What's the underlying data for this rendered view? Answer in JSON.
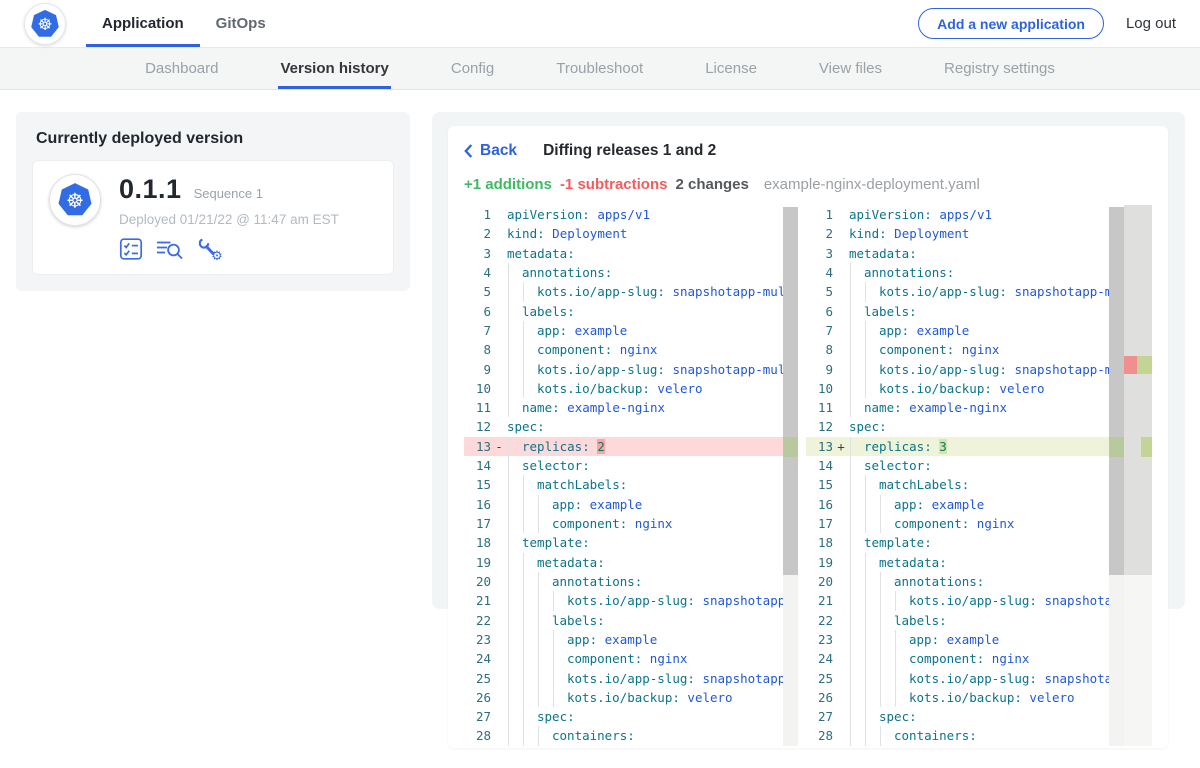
{
  "colors": {
    "accent": "#2f62df",
    "k8s_blue": "#326ce5",
    "additions_green": "#3fba64",
    "subtractions_red": "#f55b5b",
    "code_key": "#0c7489",
    "code_value": "#2158d8",
    "removed_row_bg": "#fdd9d9",
    "removed_char_bg": "#f7a5a5",
    "added_row_bg": "#eef3da",
    "added_char_bg": "#d6e5ab"
  },
  "header": {
    "tabs": [
      {
        "label": "Application",
        "active": true
      },
      {
        "label": "GitOps",
        "active": false
      }
    ],
    "add_app_button": "Add a new application",
    "logout": "Log out"
  },
  "subnav": {
    "items": [
      {
        "label": "Dashboard",
        "active": false
      },
      {
        "label": "Version history",
        "active": true
      },
      {
        "label": "Config",
        "active": false
      },
      {
        "label": "Troubleshoot",
        "active": false
      },
      {
        "label": "License",
        "active": false
      },
      {
        "label": "View files",
        "active": false
      },
      {
        "label": "Registry settings",
        "active": false
      }
    ]
  },
  "deployed_card": {
    "title": "Currently deployed version",
    "version": "0.1.1",
    "sequence": "Sequence 1",
    "deployed": "Deployed 01/21/22 @ 11:47 am EST",
    "action_icons": [
      "preflight-checks",
      "deploy-logs",
      "config"
    ]
  },
  "diff": {
    "back_label": "Back",
    "title": "Diffing releases 1 and 2",
    "additions": "+1 additions",
    "subtractions": "-1 subtractions",
    "changes": "2 changes",
    "filename": "example-nginx-deployment.yaml",
    "left": {
      "lines": [
        {
          "n": 1,
          "ind": 0,
          "k": "apiVersion:",
          "v": "apps/v1"
        },
        {
          "n": 2,
          "ind": 0,
          "k": "kind:",
          "v": "Deployment"
        },
        {
          "n": 3,
          "ind": 0,
          "k": "metadata:",
          "v": ""
        },
        {
          "n": 4,
          "ind": 1,
          "k": "annotations:",
          "v": ""
        },
        {
          "n": 5,
          "ind": 2,
          "k": "kots.io/app-slug:",
          "v": "snapshotapp-multi"
        },
        {
          "n": 6,
          "ind": 1,
          "k": "labels:",
          "v": ""
        },
        {
          "n": 7,
          "ind": 2,
          "k": "app:",
          "v": "example"
        },
        {
          "n": 8,
          "ind": 2,
          "k": "component:",
          "v": "nginx"
        },
        {
          "n": 9,
          "ind": 2,
          "k": "kots.io/app-slug:",
          "v": "snapshotapp-multi"
        },
        {
          "n": 10,
          "ind": 2,
          "k": "kots.io/backup:",
          "v": "velero"
        },
        {
          "n": 11,
          "ind": 1,
          "k": "name:",
          "v": "example-nginx"
        },
        {
          "n": 12,
          "ind": 0,
          "k": "spec:",
          "v": ""
        },
        {
          "n": 13,
          "ind": 1,
          "k": "replicas:",
          "v": "2",
          "mark": "-",
          "chg": "removed"
        },
        {
          "n": 14,
          "ind": 1,
          "k": "selector:",
          "v": ""
        },
        {
          "n": 15,
          "ind": 2,
          "k": "matchLabels:",
          "v": ""
        },
        {
          "n": 16,
          "ind": 3,
          "k": "app:",
          "v": "example"
        },
        {
          "n": 17,
          "ind": 3,
          "k": "component:",
          "v": "nginx"
        },
        {
          "n": 18,
          "ind": 1,
          "k": "template:",
          "v": ""
        },
        {
          "n": 19,
          "ind": 2,
          "k": "metadata:",
          "v": ""
        },
        {
          "n": 20,
          "ind": 3,
          "k": "annotations:",
          "v": ""
        },
        {
          "n": 21,
          "ind": 4,
          "k": "kots.io/app-slug:",
          "v": "snapshotapp-multi"
        },
        {
          "n": 22,
          "ind": 3,
          "k": "labels:",
          "v": ""
        },
        {
          "n": 23,
          "ind": 4,
          "k": "app:",
          "v": "example"
        },
        {
          "n": 24,
          "ind": 4,
          "k": "component:",
          "v": "nginx"
        },
        {
          "n": 25,
          "ind": 4,
          "k": "kots.io/app-slug:",
          "v": "snapshotapp-multi"
        },
        {
          "n": 26,
          "ind": 4,
          "k": "kots.io/backup:",
          "v": "velero"
        },
        {
          "n": 27,
          "ind": 2,
          "k": "spec:",
          "v": ""
        },
        {
          "n": 28,
          "ind": 3,
          "k": "containers:",
          "v": ""
        }
      ]
    },
    "right": {
      "lines": [
        {
          "n": 1,
          "ind": 0,
          "k": "apiVersion:",
          "v": "apps/v1"
        },
        {
          "n": 2,
          "ind": 0,
          "k": "kind:",
          "v": "Deployment"
        },
        {
          "n": 3,
          "ind": 0,
          "k": "metadata:",
          "v": ""
        },
        {
          "n": 4,
          "ind": 1,
          "k": "annotations:",
          "v": ""
        },
        {
          "n": 5,
          "ind": 2,
          "k": "kots.io/app-slug:",
          "v": "snapshotapp-multi"
        },
        {
          "n": 6,
          "ind": 1,
          "k": "labels:",
          "v": ""
        },
        {
          "n": 7,
          "ind": 2,
          "k": "app:",
          "v": "example"
        },
        {
          "n": 8,
          "ind": 2,
          "k": "component:",
          "v": "nginx"
        },
        {
          "n": 9,
          "ind": 2,
          "k": "kots.io/app-slug:",
          "v": "snapshotapp-multi"
        },
        {
          "n": 10,
          "ind": 2,
          "k": "kots.io/backup:",
          "v": "velero"
        },
        {
          "n": 11,
          "ind": 1,
          "k": "name:",
          "v": "example-nginx"
        },
        {
          "n": 12,
          "ind": 0,
          "k": "spec:",
          "v": ""
        },
        {
          "n": 13,
          "ind": 1,
          "k": "replicas:",
          "v": "3",
          "mark": "+",
          "chg": "added"
        },
        {
          "n": 14,
          "ind": 1,
          "k": "selector:",
          "v": ""
        },
        {
          "n": 15,
          "ind": 2,
          "k": "matchLabels:",
          "v": ""
        },
        {
          "n": 16,
          "ind": 3,
          "k": "app:",
          "v": "example"
        },
        {
          "n": 17,
          "ind": 3,
          "k": "component:",
          "v": "nginx"
        },
        {
          "n": 18,
          "ind": 1,
          "k": "template:",
          "v": ""
        },
        {
          "n": 19,
          "ind": 2,
          "k": "metadata:",
          "v": ""
        },
        {
          "n": 20,
          "ind": 3,
          "k": "annotations:",
          "v": ""
        },
        {
          "n": 21,
          "ind": 4,
          "k": "kots.io/app-slug:",
          "v": "snapshotapp-multi"
        },
        {
          "n": 22,
          "ind": 3,
          "k": "labels:",
          "v": ""
        },
        {
          "n": 23,
          "ind": 4,
          "k": "app:",
          "v": "example"
        },
        {
          "n": 24,
          "ind": 4,
          "k": "component:",
          "v": "nginx"
        },
        {
          "n": 25,
          "ind": 4,
          "k": "kots.io/app-slug:",
          "v": "snapshotapp-multi"
        },
        {
          "n": 26,
          "ind": 4,
          "k": "kots.io/backup:",
          "v": "velero"
        },
        {
          "n": 27,
          "ind": 2,
          "k": "spec:",
          "v": ""
        },
        {
          "n": 28,
          "ind": 3,
          "k": "containers:",
          "v": ""
        }
      ]
    }
  }
}
